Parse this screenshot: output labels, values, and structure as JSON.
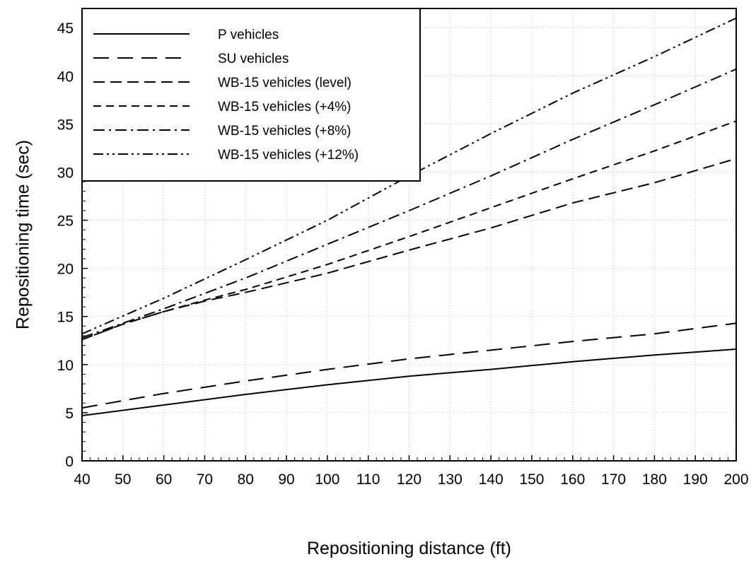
{
  "chart_data": {
    "type": "line",
    "title": "",
    "xlabel": "Repositioning distance (ft)",
    "ylabel": "Repositioning time (sec)",
    "xlim": [
      40,
      200
    ],
    "ylim": [
      0,
      47
    ],
    "x_ticks": [
      40,
      50,
      60,
      70,
      80,
      90,
      100,
      110,
      120,
      130,
      140,
      150,
      160,
      170,
      180,
      190,
      200
    ],
    "y_ticks": [
      0,
      5,
      10,
      15,
      20,
      25,
      30,
      35,
      40,
      45
    ],
    "grid": true,
    "legend_position": "top-left",
    "series": [
      {
        "name": "P vehicles",
        "dash": "solid",
        "x": [
          40,
          60,
          80,
          100,
          120,
          140,
          160,
          180,
          200
        ],
        "y": [
          4.7,
          5.8,
          6.9,
          7.9,
          8.8,
          9.5,
          10.3,
          11.0,
          11.6
        ]
      },
      {
        "name": "SU vehicles",
        "dash": "long-dash",
        "x": [
          40,
          60,
          80,
          100,
          120,
          140,
          160,
          180,
          200
        ],
        "y": [
          5.5,
          7.0,
          8.3,
          9.5,
          10.6,
          11.5,
          12.4,
          13.2,
          14.3
        ]
      },
      {
        "name": "WB-15 vehicles (level)",
        "dash": "medium-dash",
        "x": [
          40,
          50,
          60,
          70,
          80,
          100,
          120,
          140,
          160,
          180,
          200
        ],
        "y": [
          12.6,
          14.2,
          15.5,
          16.6,
          17.5,
          19.5,
          21.9,
          24.2,
          26.8,
          28.9,
          31.4
        ]
      },
      {
        "name": "WB-15 vehicles (+4%)",
        "dash": "short-dash",
        "x": [
          40,
          50,
          60,
          70,
          80,
          100,
          120,
          140,
          160,
          180,
          200
        ],
        "y": [
          12.6,
          14.2,
          15.5,
          16.7,
          17.8,
          20.4,
          23.3,
          26.3,
          29.3,
          32.2,
          35.3
        ]
      },
      {
        "name": "WB-15 vehicles (+8%)",
        "dash": "dash-dot",
        "x": [
          40,
          60,
          80,
          100,
          120,
          140,
          160,
          180,
          200
        ],
        "y": [
          12.8,
          15.8,
          19.0,
          22.5,
          26.0,
          29.6,
          33.4,
          37.0,
          40.7
        ]
      },
      {
        "name": "WB-15 vehicles (+12%)",
        "dash": "dash-dot-dot",
        "x": [
          40,
          60,
          80,
          100,
          120,
          140,
          160,
          180,
          200
        ],
        "y": [
          13.2,
          16.9,
          20.9,
          25.0,
          29.6,
          34.0,
          38.2,
          42.0,
          46.0
        ]
      }
    ]
  }
}
